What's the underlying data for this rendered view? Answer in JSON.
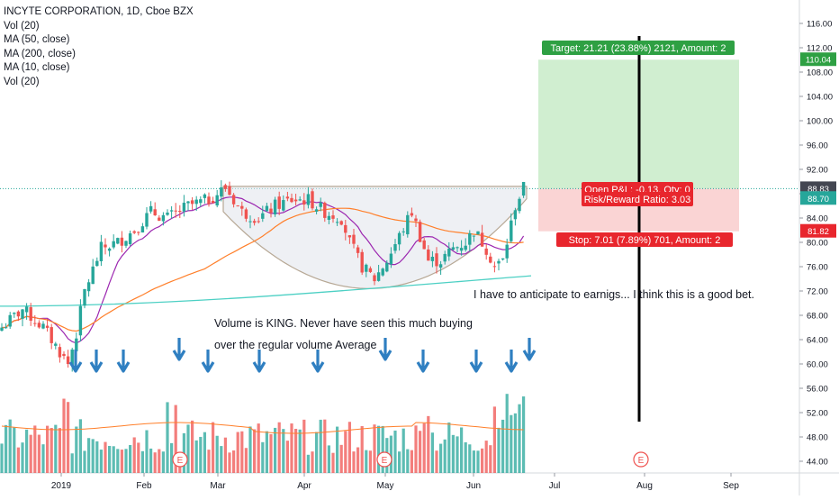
{
  "legend": {
    "title": "INCYTE CORPORATION, 1D, Cboe BZX",
    "lines": [
      "Vol (20)",
      "MA (50, close)",
      "MA (200, close)",
      "MA (10, close)",
      "Vol (20)"
    ]
  },
  "annotations": {
    "volume_line1": "Volume is KING. Never have seen this much buying",
    "volume_line2": "over the regular volume Average",
    "earnings_note": "I have to anticipate to earnigs... I think this is a good bet."
  },
  "position": {
    "target_label": "Target: 21.21 (23.88%) 2121, Amount: 2",
    "pnl_label": "Open P&L: -0.13, Qty: 0",
    "rr_label": "Risk/Reward Ratio: 3.03",
    "stop_label": "Stop: 7.01 (7.89%) 701, Amount: 2",
    "entry": 88.83,
    "target": 110.04,
    "stop": 81.82
  },
  "price_badges": [
    {
      "text": "110.04",
      "color": "#2ea043"
    },
    {
      "text": "88.83",
      "color": "#434651"
    },
    {
      "text": "88.70",
      "color": "#26a69a"
    },
    {
      "text": "81.82",
      "color": "#e8262d"
    }
  ],
  "earnings_marker": "E",
  "colors": {
    "up": "#26a69a",
    "down": "#ef5350",
    "ma10": "#9c27b0",
    "ma50": "#ff7f2a",
    "ma200": "#4dd0c4",
    "vol_ma": "#ff7f2a",
    "arrow": "#2f7fc1",
    "target_zone": "#c8ebc8",
    "stop_zone": "#f9cccc"
  },
  "chart_data": {
    "type": "candlestick",
    "title": "INCYTE CORPORATION, 1D, Cboe BZX",
    "ylim": [
      42,
      118
    ],
    "y_ticks": [
      44,
      48,
      52,
      56,
      60,
      64,
      68,
      72,
      76,
      80,
      84,
      88,
      92,
      96,
      100,
      104,
      108,
      112,
      116
    ],
    "x_tick_labels": [
      "2019",
      "Feb",
      "Mar",
      "Apr",
      "May",
      "Jun",
      "Jul",
      "Aug",
      "Sep"
    ],
    "price_path": [
      [
        0,
        66
      ],
      [
        5,
        69
      ],
      [
        10,
        66
      ],
      [
        14,
        62
      ],
      [
        16,
        60
      ],
      [
        18,
        65
      ],
      [
        20,
        72
      ],
      [
        24,
        79
      ],
      [
        28,
        80
      ],
      [
        32,
        82
      ],
      [
        36,
        85
      ],
      [
        40,
        84
      ],
      [
        45,
        86
      ],
      [
        50,
        87
      ],
      [
        54,
        89
      ],
      [
        58,
        85
      ],
      [
        62,
        84
      ],
      [
        66,
        86
      ],
      [
        70,
        87
      ],
      [
        74,
        87
      ],
      [
        78,
        85
      ],
      [
        82,
        84
      ],
      [
        84,
        80
      ],
      [
        87,
        76
      ],
      [
        90,
        74
      ],
      [
        93,
        77
      ],
      [
        96,
        81
      ],
      [
        99,
        85
      ],
      [
        101,
        81
      ],
      [
        103,
        77
      ],
      [
        106,
        77
      ],
      [
        109,
        79
      ],
      [
        112,
        80
      ],
      [
        114,
        82
      ],
      [
        117,
        79
      ],
      [
        119,
        76
      ],
      [
        121,
        77
      ],
      [
        124,
        86
      ],
      [
        126,
        89
      ]
    ],
    "ma200_range": [
      69.5,
      74.5
    ],
    "earnings_dates": [
      "Feb 14",
      "May 1",
      "Jul 30"
    ],
    "target_lines": [
      88.83,
      110.04,
      81.82
    ]
  }
}
